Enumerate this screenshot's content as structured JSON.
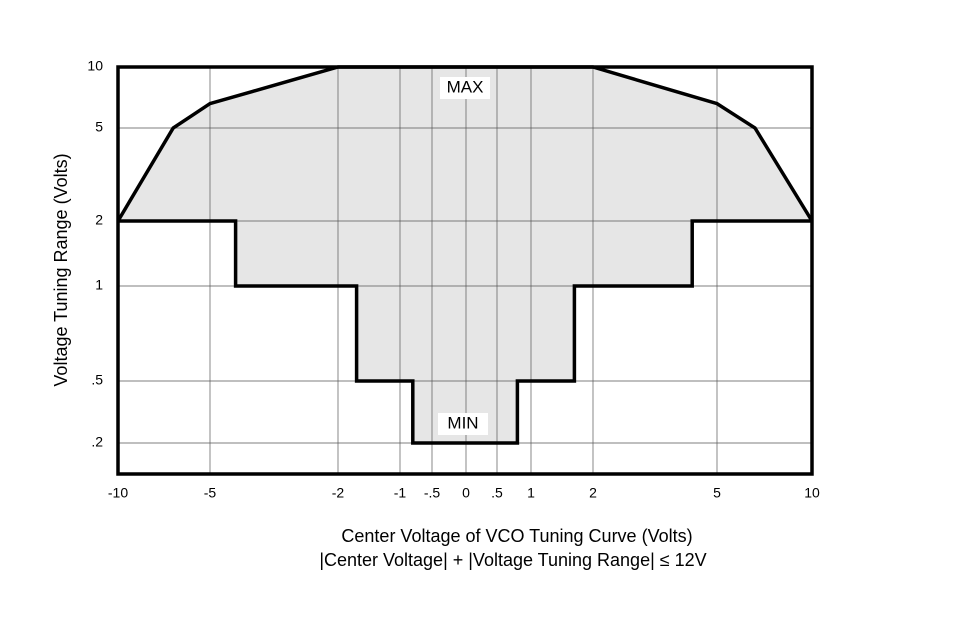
{
  "chart_data": {
    "type": "range-line",
    "x_label": "Center Voltage of VCO Tuning Curve (Volts)",
    "x_label_2": "|Center Voltage| + |Voltage Tuning Range| ≤ 12V",
    "y_label": "Voltage Tuning Range (Volts)",
    "xlim": [
      -10,
      10
    ],
    "xticks": [
      -10,
      -5,
      -2,
      -1,
      {
        "value": -0.5,
        "label": "-.5"
      },
      0,
      {
        "value": 0.5,
        "label": ".5"
      },
      1,
      2,
      5,
      10
    ],
    "ylim": [
      0.1,
      10
    ],
    "yticks": [
      {
        "value": 0.2,
        "label": ".2"
      },
      {
        "value": 0.5,
        "label": ".5"
      },
      1,
      2,
      5,
      10
    ],
    "grid": true,
    "fill_color": "#e6e6e6",
    "series": [
      {
        "name": "MAX",
        "color": "#000000",
        "x": [
          -10,
          -9,
          -8,
          -7,
          -6,
          -5,
          -4,
          -3,
          -2,
          2,
          3,
          4,
          5,
          6,
          7,
          8,
          9,
          10
        ],
        "values": [
          2,
          3,
          4,
          5,
          6,
          7,
          8,
          9,
          10,
          10,
          9,
          8,
          7,
          6,
          5,
          4,
          3,
          2
        ]
      },
      {
        "name": "MIN",
        "color": "#000000",
        "x": [
          -10,
          -4.4,
          -4.4,
          -1.7,
          -1.7,
          -0.8,
          -0.8,
          0.8,
          0.8,
          1.7,
          1.7,
          4.4,
          4.4,
          10
        ],
        "values": [
          2,
          2,
          1,
          1,
          0.5,
          0.5,
          0.2,
          0.2,
          0.5,
          0.5,
          1,
          1,
          2,
          2
        ]
      }
    ]
  }
}
